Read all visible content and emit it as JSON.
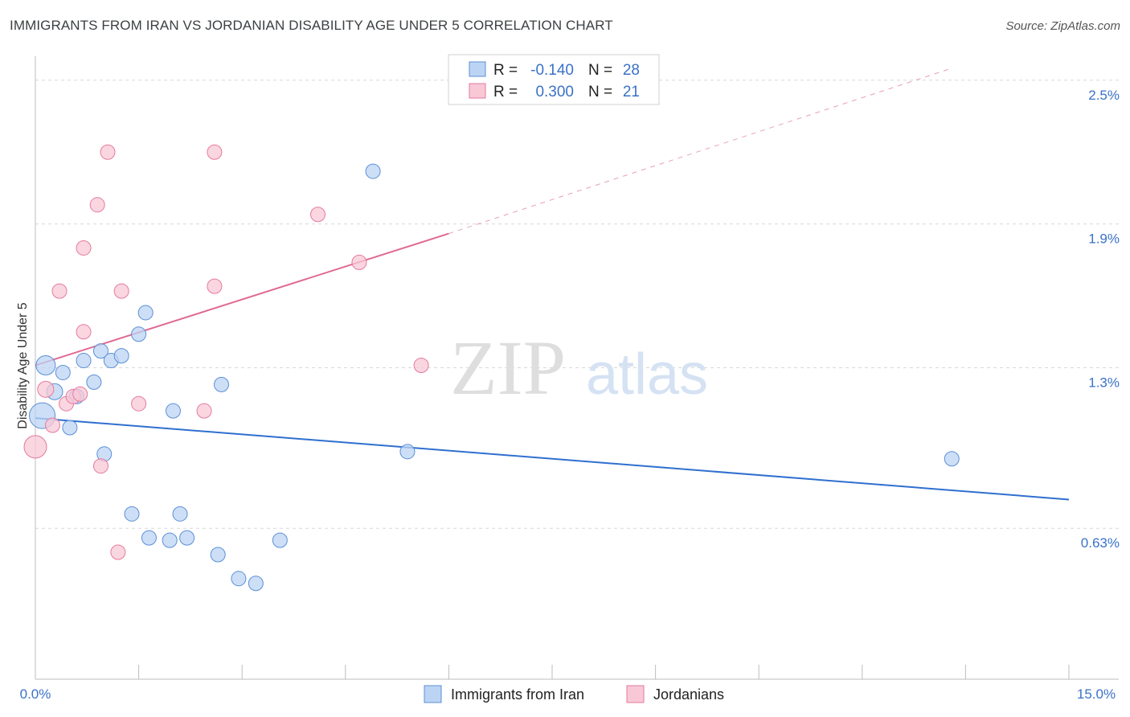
{
  "header": {
    "title": "IMMIGRANTS FROM IRAN VS JORDANIAN DISABILITY AGE UNDER 5 CORRELATION CHART",
    "source": "Source: ZipAtlas.com"
  },
  "watermark": {
    "zip": "ZIP",
    "atlas": "atlas"
  },
  "legend_top": {
    "r_label": "R =",
    "n_label": "N =",
    "rows": [
      {
        "r": "-0.140",
        "n": "28"
      },
      {
        "r": "0.300",
        "n": "21"
      }
    ]
  },
  "chart_data": {
    "type": "scatter",
    "title": "IMMIGRANTS FROM IRAN VS JORDANIAN DISABILITY AGE UNDER 5 CORRELATION CHART",
    "xlabel": "",
    "ylabel": "Disability Age Under 5",
    "xlim": [
      0,
      15
    ],
    "ylim": [
      0.0,
      2.6
    ],
    "x_tick_labels": [
      "0.0%",
      "15.0%"
    ],
    "y_ticks": [
      {
        "value": 2.5,
        "label": "2.5%"
      },
      {
        "value": 1.9,
        "label": "1.9%"
      },
      {
        "value": 1.3,
        "label": "1.3%"
      },
      {
        "value": 0.63,
        "label": "0.63%"
      }
    ],
    "grid": true,
    "legend_position": "bottom",
    "colors": {
      "iran": "#5b8fd6",
      "jordan": "#e47a9f",
      "iran_fill": "#bcd4f3",
      "jordan_fill": "#f8c8d6"
    },
    "series": [
      {
        "name": "Immigrants from Iran",
        "color": "#5b8fd6",
        "points": [
          {
            "x": 0.15,
            "y": 1.31,
            "s": 12
          },
          {
            "x": 0.1,
            "y": 1.1,
            "s": 16
          },
          {
            "x": 0.28,
            "y": 1.2,
            "s": 10
          },
          {
            "x": 0.4,
            "y": 1.28,
            "s": 9
          },
          {
            "x": 0.5,
            "y": 1.05,
            "s": 9
          },
          {
            "x": 0.6,
            "y": 1.18,
            "s": 9
          },
          {
            "x": 0.7,
            "y": 1.33,
            "s": 9
          },
          {
            "x": 0.85,
            "y": 1.24,
            "s": 9
          },
          {
            "x": 0.95,
            "y": 1.37,
            "s": 9
          },
          {
            "x": 1.1,
            "y": 1.33,
            "s": 9
          },
          {
            "x": 1.25,
            "y": 1.35,
            "s": 9
          },
          {
            "x": 1.5,
            "y": 1.44,
            "s": 9
          },
          {
            "x": 1.6,
            "y": 1.53,
            "s": 9
          },
          {
            "x": 1.0,
            "y": 0.94,
            "s": 9
          },
          {
            "x": 1.4,
            "y": 0.69,
            "s": 9
          },
          {
            "x": 1.65,
            "y": 0.59,
            "s": 9
          },
          {
            "x": 1.95,
            "y": 0.58,
            "s": 9
          },
          {
            "x": 2.0,
            "y": 1.12,
            "s": 9
          },
          {
            "x": 2.1,
            "y": 0.69,
            "s": 9
          },
          {
            "x": 2.2,
            "y": 0.59,
            "s": 9
          },
          {
            "x": 2.65,
            "y": 0.52,
            "s": 9
          },
          {
            "x": 2.7,
            "y": 1.23,
            "s": 9
          },
          {
            "x": 2.95,
            "y": 0.42,
            "s": 9
          },
          {
            "x": 3.2,
            "y": 0.4,
            "s": 9
          },
          {
            "x": 3.55,
            "y": 0.58,
            "s": 9
          },
          {
            "x": 4.9,
            "y": 2.12,
            "s": 9
          },
          {
            "x": 5.4,
            "y": 0.95,
            "s": 9
          },
          {
            "x": 13.3,
            "y": 0.92,
            "s": 9
          }
        ],
        "trend": {
          "x0": 0.0,
          "y0": 1.09,
          "x1": 15.0,
          "y1": 0.75
        }
      },
      {
        "name": "Jordanians",
        "color": "#e47a9f",
        "points": [
          {
            "x": 0.0,
            "y": 0.97,
            "s": 14
          },
          {
            "x": 0.15,
            "y": 1.21,
            "s": 10
          },
          {
            "x": 0.25,
            "y": 1.06,
            "s": 9
          },
          {
            "x": 0.35,
            "y": 1.62,
            "s": 9
          },
          {
            "x": 0.45,
            "y": 1.15,
            "s": 9
          },
          {
            "x": 0.55,
            "y": 1.18,
            "s": 9
          },
          {
            "x": 0.65,
            "y": 1.19,
            "s": 9
          },
          {
            "x": 0.7,
            "y": 1.45,
            "s": 9
          },
          {
            "x": 0.9,
            "y": 1.98,
            "s": 9
          },
          {
            "x": 0.95,
            "y": 0.89,
            "s": 9
          },
          {
            "x": 0.7,
            "y": 1.8,
            "s": 9
          },
          {
            "x": 1.05,
            "y": 2.2,
            "s": 9
          },
          {
            "x": 1.25,
            "y": 1.62,
            "s": 9
          },
          {
            "x": 1.2,
            "y": 0.53,
            "s": 9
          },
          {
            "x": 1.5,
            "y": 1.15,
            "s": 9
          },
          {
            "x": 2.45,
            "y": 1.12,
            "s": 9
          },
          {
            "x": 2.6,
            "y": 1.64,
            "s": 9
          },
          {
            "x": 2.6,
            "y": 2.2,
            "s": 9
          },
          {
            "x": 4.1,
            "y": 1.94,
            "s": 9
          },
          {
            "x": 4.7,
            "y": 1.74,
            "s": 9
          },
          {
            "x": 5.6,
            "y": 1.31,
            "s": 9
          }
        ],
        "trend": {
          "x0": 0.0,
          "y0": 1.31,
          "x1": 6.0,
          "y1": 1.86,
          "dash_to_x": 13.3,
          "dash_to_y": 2.55
        }
      }
    ]
  },
  "bottom_legend": [
    "Immigrants from Iran",
    "Jordanians"
  ]
}
